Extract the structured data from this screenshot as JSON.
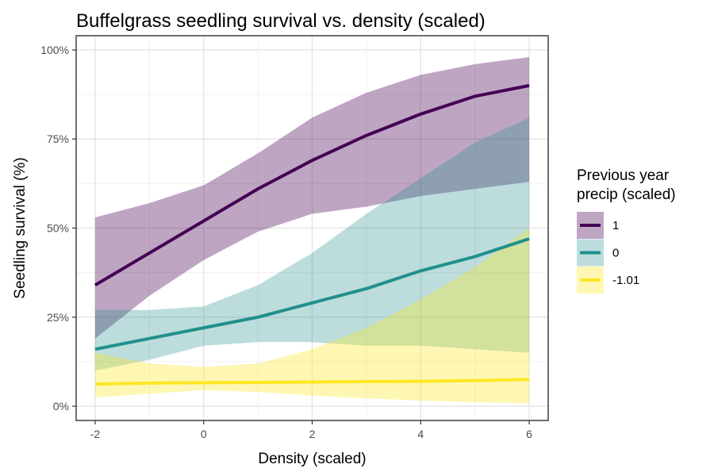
{
  "chart_data": {
    "type": "line",
    "title": "Buffelgrass seedling survival vs. density (scaled)",
    "xlabel": "Density (scaled)",
    "ylabel": "Seedling survival (%)",
    "xlim": [
      -2.35,
      6.35
    ],
    "ylim": [
      -0.04,
      1.04
    ],
    "x_ticks": [
      -2,
      0,
      2,
      4,
      6
    ],
    "x_tick_labels": [
      "-2",
      "0",
      "2",
      "4",
      "6"
    ],
    "y_ticks": [
      0,
      0.25,
      0.5,
      0.75,
      1
    ],
    "y_tick_labels": [
      "0%",
      "25%",
      "50%",
      "75%",
      "100%"
    ],
    "grid": true,
    "legend": {
      "title_lines": [
        "Previous year",
        "precip (scaled)"
      ],
      "placement": "right"
    },
    "x": [
      -2,
      -1,
      0,
      1,
      2,
      3,
      4,
      5,
      6
    ],
    "series": [
      {
        "name": "1",
        "color": "#440154",
        "fill_opacity": 0.35,
        "values": [
          0.34,
          0.43,
          0.52,
          0.61,
          0.69,
          0.76,
          0.82,
          0.87,
          0.9
        ],
        "lower": [
          0.19,
          0.31,
          0.41,
          0.49,
          0.54,
          0.56,
          0.59,
          0.61,
          0.63
        ],
        "upper": [
          0.53,
          0.57,
          0.62,
          0.71,
          0.81,
          0.88,
          0.93,
          0.96,
          0.98
        ]
      },
      {
        "name": "0",
        "color": "#21908C",
        "fill_opacity": 0.3,
        "values": [
          0.16,
          0.19,
          0.22,
          0.25,
          0.29,
          0.33,
          0.38,
          0.42,
          0.47
        ],
        "lower": [
          0.1,
          0.13,
          0.17,
          0.18,
          0.18,
          0.17,
          0.17,
          0.16,
          0.15
        ],
        "upper": [
          0.27,
          0.27,
          0.28,
          0.34,
          0.43,
          0.54,
          0.64,
          0.74,
          0.81
        ]
      },
      {
        "name": "-1.01",
        "color": "#FDE725",
        "fill_opacity": 0.35,
        "values": [
          0.062,
          0.065,
          0.066,
          0.067,
          0.068,
          0.069,
          0.07,
          0.072,
          0.075
        ],
        "lower": [
          0.025,
          0.035,
          0.045,
          0.04,
          0.03,
          0.022,
          0.016,
          0.011,
          0.008
        ],
        "upper": [
          0.15,
          0.12,
          0.11,
          0.12,
          0.16,
          0.22,
          0.3,
          0.39,
          0.5
        ]
      }
    ]
  }
}
